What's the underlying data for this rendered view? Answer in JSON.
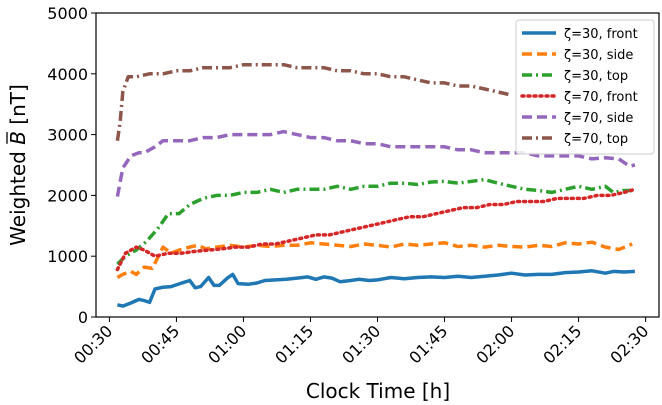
{
  "chart_data": {
    "type": "line",
    "xlabel": "Clock Time [h]",
    "ylabel": "Weighted B̄ [nT]",
    "ylabel_base": "Weighted ",
    "ylabel_symbol": "B",
    "ylabel_unit": " [nT]",
    "xlim": [
      0.45,
      2.55
    ],
    "ylim": [
      0,
      5000
    ],
    "x_ticks": [
      0.5,
      0.75,
      1.0,
      1.25,
      1.5,
      1.75,
      2.0,
      2.25,
      2.5
    ],
    "x_tick_labels": [
      "00:30",
      "00:45",
      "01:00",
      "01:15",
      "01:30",
      "01:45",
      "02:00",
      "02:15",
      "02:30"
    ],
    "y_ticks": [
      0,
      1000,
      2000,
      3000,
      4000,
      5000
    ],
    "y_tick_labels": [
      "0",
      "1000",
      "2000",
      "3000",
      "4000",
      "5000"
    ],
    "legend_position": "top-right",
    "grid": false,
    "series": [
      {
        "name": "ζ=30, front",
        "color": "#1f77b4",
        "dash": "solid",
        "points": [
          [
            0.53,
            200
          ],
          [
            0.55,
            180
          ],
          [
            0.58,
            230
          ],
          [
            0.61,
            290
          ],
          [
            0.63,
            270
          ],
          [
            0.65,
            240
          ],
          [
            0.67,
            460
          ],
          [
            0.7,
            490
          ],
          [
            0.73,
            500
          ],
          [
            0.77,
            560
          ],
          [
            0.8,
            600
          ],
          [
            0.82,
            480
          ],
          [
            0.84,
            500
          ],
          [
            0.87,
            650
          ],
          [
            0.89,
            520
          ],
          [
            0.91,
            520
          ],
          [
            0.94,
            640
          ],
          [
            0.96,
            700
          ],
          [
            0.98,
            550
          ],
          [
            1.02,
            540
          ],
          [
            1.05,
            560
          ],
          [
            1.08,
            600
          ],
          [
            1.12,
            610
          ],
          [
            1.16,
            620
          ],
          [
            1.2,
            640
          ],
          [
            1.24,
            660
          ],
          [
            1.27,
            620
          ],
          [
            1.3,
            660
          ],
          [
            1.33,
            640
          ],
          [
            1.36,
            580
          ],
          [
            1.4,
            600
          ],
          [
            1.43,
            620
          ],
          [
            1.47,
            600
          ],
          [
            1.5,
            610
          ],
          [
            1.55,
            650
          ],
          [
            1.6,
            630
          ],
          [
            1.65,
            650
          ],
          [
            1.7,
            660
          ],
          [
            1.75,
            650
          ],
          [
            1.8,
            670
          ],
          [
            1.85,
            650
          ],
          [
            1.9,
            670
          ],
          [
            1.95,
            690
          ],
          [
            2.0,
            720
          ],
          [
            2.05,
            690
          ],
          [
            2.1,
            700
          ],
          [
            2.15,
            700
          ],
          [
            2.2,
            730
          ],
          [
            2.25,
            740
          ],
          [
            2.3,
            760
          ],
          [
            2.35,
            720
          ],
          [
            2.38,
            750
          ],
          [
            2.42,
            740
          ],
          [
            2.46,
            750
          ]
        ]
      },
      {
        "name": "ζ=30, side",
        "color": "#ff7f0e",
        "dash": "dashed",
        "points": [
          [
            0.53,
            650
          ],
          [
            0.55,
            700
          ],
          [
            0.58,
            750
          ],
          [
            0.6,
            700
          ],
          [
            0.63,
            820
          ],
          [
            0.66,
            800
          ],
          [
            0.7,
            1150
          ],
          [
            0.73,
            1050
          ],
          [
            0.76,
            1100
          ],
          [
            0.8,
            1150
          ],
          [
            0.83,
            1180
          ],
          [
            0.86,
            1120
          ],
          [
            0.9,
            1150
          ],
          [
            0.95,
            1180
          ],
          [
            1.0,
            1150
          ],
          [
            1.05,
            1180
          ],
          [
            1.1,
            1160
          ],
          [
            1.15,
            1180
          ],
          [
            1.2,
            1180
          ],
          [
            1.25,
            1220
          ],
          [
            1.3,
            1200
          ],
          [
            1.35,
            1180
          ],
          [
            1.4,
            1160
          ],
          [
            1.45,
            1200
          ],
          [
            1.5,
            1180
          ],
          [
            1.55,
            1150
          ],
          [
            1.6,
            1200
          ],
          [
            1.65,
            1180
          ],
          [
            1.7,
            1200
          ],
          [
            1.75,
            1220
          ],
          [
            1.8,
            1160
          ],
          [
            1.85,
            1180
          ],
          [
            1.9,
            1150
          ],
          [
            1.95,
            1180
          ],
          [
            2.0,
            1160
          ],
          [
            2.05,
            1150
          ],
          [
            2.1,
            1180
          ],
          [
            2.15,
            1160
          ],
          [
            2.2,
            1220
          ],
          [
            2.25,
            1200
          ],
          [
            2.3,
            1230
          ],
          [
            2.35,
            1150
          ],
          [
            2.4,
            1110
          ],
          [
            2.45,
            1200
          ]
        ]
      },
      {
        "name": "ζ=30, top",
        "color": "#2ca02c",
        "dash": "dashdot",
        "points": [
          [
            0.53,
            870
          ],
          [
            0.56,
            1000
          ],
          [
            0.6,
            1100
          ],
          [
            0.64,
            1250
          ],
          [
            0.68,
            1450
          ],
          [
            0.72,
            1700
          ],
          [
            0.76,
            1700
          ],
          [
            0.8,
            1850
          ],
          [
            0.85,
            1950
          ],
          [
            0.9,
            2000
          ],
          [
            0.95,
            2000
          ],
          [
            1.0,
            2050
          ],
          [
            1.05,
            2050
          ],
          [
            1.1,
            2100
          ],
          [
            1.15,
            2050
          ],
          [
            1.2,
            2100
          ],
          [
            1.25,
            2100
          ],
          [
            1.3,
            2100
          ],
          [
            1.35,
            2150
          ],
          [
            1.4,
            2100
          ],
          [
            1.45,
            2150
          ],
          [
            1.5,
            2150
          ],
          [
            1.55,
            2200
          ],
          [
            1.6,
            2200
          ],
          [
            1.65,
            2180
          ],
          [
            1.7,
            2220
          ],
          [
            1.75,
            2230
          ],
          [
            1.8,
            2200
          ],
          [
            1.85,
            2230
          ],
          [
            1.9,
            2260
          ],
          [
            1.95,
            2200
          ],
          [
            2.0,
            2150
          ],
          [
            2.05,
            2100
          ],
          [
            2.1,
            2080
          ],
          [
            2.15,
            2050
          ],
          [
            2.2,
            2100
          ],
          [
            2.25,
            2150
          ],
          [
            2.3,
            2100
          ],
          [
            2.35,
            2150
          ],
          [
            2.38,
            2050
          ],
          [
            2.42,
            2080
          ],
          [
            2.46,
            2080
          ]
        ]
      },
      {
        "name": "ζ=70, front",
        "color": "#d62728",
        "dash": "dotted",
        "points": [
          [
            0.53,
            780
          ],
          [
            0.56,
            1050
          ],
          [
            0.6,
            1150
          ],
          [
            0.63,
            1100
          ],
          [
            0.67,
            1000
          ],
          [
            0.72,
            1050
          ],
          [
            0.77,
            1050
          ],
          [
            0.82,
            1080
          ],
          [
            0.87,
            1100
          ],
          [
            0.92,
            1120
          ],
          [
            0.97,
            1150
          ],
          [
            1.02,
            1150
          ],
          [
            1.07,
            1200
          ],
          [
            1.12,
            1200
          ],
          [
            1.17,
            1250
          ],
          [
            1.22,
            1300
          ],
          [
            1.27,
            1350
          ],
          [
            1.32,
            1350
          ],
          [
            1.37,
            1400
          ],
          [
            1.42,
            1450
          ],
          [
            1.47,
            1500
          ],
          [
            1.52,
            1550
          ],
          [
            1.57,
            1600
          ],
          [
            1.62,
            1650
          ],
          [
            1.67,
            1650
          ],
          [
            1.72,
            1700
          ],
          [
            1.77,
            1750
          ],
          [
            1.82,
            1800
          ],
          [
            1.87,
            1800
          ],
          [
            1.92,
            1850
          ],
          [
            1.97,
            1850
          ],
          [
            2.02,
            1900
          ],
          [
            2.07,
            1900
          ],
          [
            2.12,
            1900
          ],
          [
            2.17,
            1950
          ],
          [
            2.22,
            1950
          ],
          [
            2.27,
            1950
          ],
          [
            2.32,
            2000
          ],
          [
            2.37,
            2000
          ],
          [
            2.42,
            2050
          ],
          [
            2.46,
            2100
          ]
        ]
      },
      {
        "name": "ζ=70, side",
        "color": "#9467bd",
        "dash": "dashed",
        "points": [
          [
            0.53,
            1980
          ],
          [
            0.55,
            2450
          ],
          [
            0.58,
            2650
          ],
          [
            0.61,
            2700
          ],
          [
            0.63,
            2700
          ],
          [
            0.67,
            2800
          ],
          [
            0.7,
            2900
          ],
          [
            0.75,
            2900
          ],
          [
            0.8,
            2900
          ],
          [
            0.85,
            2950
          ],
          [
            0.9,
            2950
          ],
          [
            0.95,
            3000
          ],
          [
            1.0,
            3000
          ],
          [
            1.05,
            3000
          ],
          [
            1.1,
            3000
          ],
          [
            1.15,
            3050
          ],
          [
            1.2,
            3000
          ],
          [
            1.25,
            2950
          ],
          [
            1.3,
            2950
          ],
          [
            1.35,
            2900
          ],
          [
            1.4,
            2900
          ],
          [
            1.45,
            2850
          ],
          [
            1.5,
            2850
          ],
          [
            1.55,
            2800
          ],
          [
            1.6,
            2800
          ],
          [
            1.65,
            2800
          ],
          [
            1.7,
            2800
          ],
          [
            1.75,
            2800
          ],
          [
            1.8,
            2750
          ],
          [
            1.85,
            2750
          ],
          [
            1.9,
            2700
          ],
          [
            1.95,
            2700
          ],
          [
            2.0,
            2700
          ],
          [
            2.05,
            2700
          ],
          [
            2.1,
            2650
          ],
          [
            2.15,
            2650
          ],
          [
            2.2,
            2650
          ],
          [
            2.25,
            2650
          ],
          [
            2.3,
            2600
          ],
          [
            2.35,
            2620
          ],
          [
            2.4,
            2600
          ],
          [
            2.44,
            2480
          ],
          [
            2.46,
            2500
          ]
        ]
      },
      {
        "name": "ζ=70, top",
        "color": "#8c564b",
        "dash": "dashdot",
        "points": [
          [
            0.53,
            2900
          ],
          [
            0.54,
            3200
          ],
          [
            0.55,
            3700
          ],
          [
            0.57,
            3950
          ],
          [
            0.6,
            3950
          ],
          [
            0.65,
            4000
          ],
          [
            0.7,
            4000
          ],
          [
            0.75,
            4050
          ],
          [
            0.8,
            4050
          ],
          [
            0.85,
            4100
          ],
          [
            0.9,
            4100
          ],
          [
            0.95,
            4100
          ],
          [
            1.0,
            4150
          ],
          [
            1.05,
            4150
          ],
          [
            1.1,
            4150
          ],
          [
            1.15,
            4150
          ],
          [
            1.2,
            4100
          ],
          [
            1.25,
            4100
          ],
          [
            1.3,
            4100
          ],
          [
            1.35,
            4050
          ],
          [
            1.4,
            4050
          ],
          [
            1.45,
            4000
          ],
          [
            1.5,
            4000
          ],
          [
            1.55,
            3950
          ],
          [
            1.6,
            3950
          ],
          [
            1.65,
            3900
          ],
          [
            1.7,
            3850
          ],
          [
            1.75,
            3850
          ],
          [
            1.8,
            3800
          ],
          [
            1.85,
            3800
          ],
          [
            1.9,
            3750
          ],
          [
            1.95,
            3700
          ],
          [
            2.0,
            3650
          ]
        ]
      }
    ]
  }
}
